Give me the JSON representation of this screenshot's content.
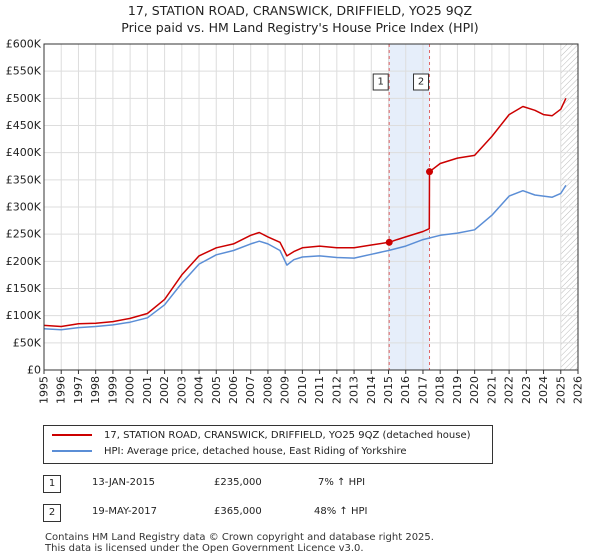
{
  "header": {
    "title": "17, STATION ROAD, CRANSWICK, DRIFFIELD, YO25 9QZ",
    "subtitle": "Price paid vs. HM Land Registry's House Price Index (HPI)"
  },
  "chart_data": {
    "type": "line",
    "title": "17, STATION ROAD, CRANSWICK, DRIFFIELD, YO25 9QZ",
    "subtitle": "Price paid vs. HM Land Registry's House Price Index (HPI)",
    "xlim": [
      1995,
      2026
    ],
    "ylim": [
      0,
      600000
    ],
    "x_ticks": [
      1995,
      1996,
      1997,
      1998,
      1999,
      2000,
      2001,
      2002,
      2003,
      2004,
      2005,
      2006,
      2007,
      2008,
      2009,
      2010,
      2011,
      2012,
      2013,
      2014,
      2015,
      2016,
      2017,
      2018,
      2019,
      2020,
      2021,
      2022,
      2023,
      2024,
      2025,
      2026
    ],
    "y_ticks": [
      0,
      50000,
      100000,
      150000,
      200000,
      250000,
      300000,
      350000,
      400000,
      450000,
      500000,
      550000,
      600000
    ],
    "y_tick_labels": [
      "£0",
      "£50K",
      "£100K",
      "£150K",
      "£200K",
      "£250K",
      "£300K",
      "£350K",
      "£400K",
      "£450K",
      "£500K",
      "£550K",
      "£600K"
    ],
    "grid": true,
    "colors": {
      "property": "#cc0000",
      "hpi": "#5b8ed6",
      "marker_line": "#e06666",
      "shade": "#e6eefa"
    },
    "series": [
      {
        "name": "17, STATION ROAD, CRANSWICK, DRIFFIELD, YO25 9QZ (detached house)",
        "x": [
          1995,
          1996,
          1997,
          1998,
          1999,
          2000,
          2001,
          2002,
          2003,
          2004,
          2005,
          2006,
          2007,
          2007.5,
          2008,
          2008.7,
          2009.1,
          2009.5,
          2010,
          2011,
          2012,
          2013,
          2014,
          2015.04,
          2015.5,
          2016,
          2017,
          2017.37,
          2017.38,
          2018,
          2019,
          2020,
          2021,
          2022,
          2022.8,
          2023.5,
          2024,
          2024.5,
          2025,
          2025.3
        ],
        "values": [
          82000,
          80000,
          85000,
          86000,
          89000,
          95000,
          104000,
          130000,
          175000,
          210000,
          225000,
          232000,
          248000,
          253000,
          245000,
          235000,
          210000,
          218000,
          225000,
          228000,
          225000,
          225000,
          230000,
          235000,
          240000,
          245000,
          255000,
          260000,
          365000,
          380000,
          390000,
          395000,
          430000,
          470000,
          485000,
          478000,
          470000,
          468000,
          480000,
          500000
        ]
      },
      {
        "name": "HPI: Average price, detached house, East Riding of Yorkshire",
        "x": [
          1995,
          1996,
          1997,
          1998,
          1999,
          2000,
          2001,
          2002,
          2003,
          2004,
          2005,
          2006,
          2007,
          2007.5,
          2008,
          2008.7,
          2009.1,
          2009.5,
          2010,
          2011,
          2012,
          2013,
          2014,
          2015,
          2016,
          2017,
          2018,
          2019,
          2020,
          2021,
          2022,
          2022.8,
          2023.5,
          2024,
          2024.5,
          2025,
          2025.3
        ],
        "values": [
          76000,
          74000,
          78000,
          80000,
          83000,
          88000,
          96000,
          120000,
          160000,
          195000,
          212000,
          220000,
          232000,
          237000,
          232000,
          220000,
          193000,
          203000,
          208000,
          210000,
          207000,
          206000,
          213000,
          220000,
          228000,
          240000,
          248000,
          252000,
          258000,
          285000,
          320000,
          330000,
          322000,
          320000,
          318000,
          325000,
          340000
        ]
      }
    ],
    "annotations": [
      {
        "label": "1",
        "x": 2015.04,
        "value": 235000
      },
      {
        "label": "2",
        "x": 2017.38,
        "value": 365000
      }
    ]
  },
  "legend": {
    "items": [
      {
        "label": "17, STATION ROAD, CRANSWICK, DRIFFIELD, YO25 9QZ (detached house)"
      },
      {
        "label": "HPI: Average price, detached house, East Riding of Yorkshire"
      }
    ]
  },
  "transactions": [
    {
      "label": "1",
      "date": "13-JAN-2015",
      "price": "£235,000",
      "hpi": "7% ↑ HPI"
    },
    {
      "label": "2",
      "date": "19-MAY-2017",
      "price": "£365,000",
      "hpi": "48% ↑ HPI"
    }
  ],
  "footer": {
    "line1": "Contains HM Land Registry data © Crown copyright and database right 2025.",
    "line2": "This data is licensed under the Open Government Licence v3.0."
  }
}
